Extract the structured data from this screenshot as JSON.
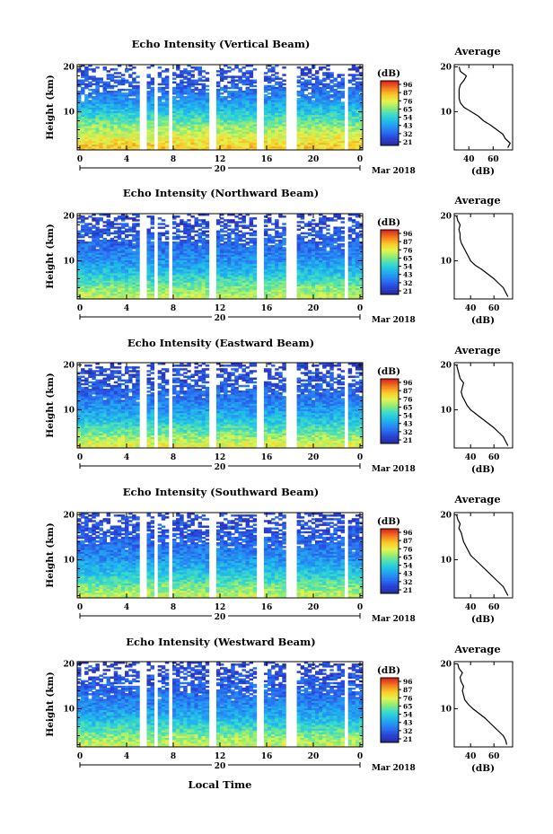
{
  "figure": {
    "xlabel": "Local Time",
    "date_label": "Mar 2018",
    "day_label": "20",
    "colorbar_unit": "(dB)",
    "colorbar_ticks": [
      "96",
      "87",
      "76",
      "65",
      "54",
      "43",
      "32",
      "21"
    ],
    "avg_title": "Average",
    "avg_xlabel": "(dB)"
  },
  "chart_data": [
    {
      "type": "heatmap",
      "title": "Echo Intensity (Vertical Beam)",
      "ylabel": "Height (km)",
      "xlabel": "",
      "x_ticks": [
        "0",
        "4",
        "8",
        "12",
        "16",
        "20",
        "0"
      ],
      "y_ticks": [
        "10",
        "20"
      ],
      "xlim": [
        0,
        24
      ],
      "ylim": [
        1.5,
        20.5
      ],
      "colorbar": {
        "unit": "(dB)",
        "range": [
          21,
          100
        ]
      },
      "data_gaps_hours": [
        [
          5.2,
          5.8
        ],
        [
          6.6,
          6.9
        ],
        [
          7.6,
          8.0
        ],
        [
          11.2,
          11.6
        ],
        [
          15.2,
          15.6
        ],
        [
          17.6,
          18.6
        ],
        [
          22.5,
          22.8
        ]
      ],
      "intensity_by_height": {
        "heights_km": [
          2,
          4,
          6,
          8,
          10,
          12,
          14,
          16,
          18,
          20
        ],
        "dB": [
          82,
          77,
          70,
          62,
          54,
          46,
          40,
          34,
          32,
          30
        ]
      },
      "average_profile": {
        "title": "Average",
        "xlabel": "(dB)",
        "x_ticks": [
          "40",
          "60"
        ],
        "y_ticks": [
          "10",
          "20"
        ],
        "xlim": [
          28,
          76
        ],
        "ylim": [
          1.5,
          20.5
        ],
        "height_km": [
          2,
          3,
          4,
          5,
          6,
          7,
          8,
          9,
          10,
          11,
          12,
          13,
          14,
          15,
          16,
          17,
          18,
          19,
          20
        ],
        "dB": [
          72,
          74,
          70,
          68,
          63,
          58,
          52,
          48,
          42,
          36,
          33,
          32,
          32,
          32,
          33,
          36,
          38,
          33,
          32
        ]
      }
    },
    {
      "type": "heatmap",
      "title": "Echo Intensity (Northward Beam)",
      "ylabel": "Height (km)",
      "xlabel": "",
      "x_ticks": [
        "0",
        "4",
        "8",
        "12",
        "16",
        "20",
        "0"
      ],
      "y_ticks": [
        "10",
        "20"
      ],
      "xlim": [
        0,
        24
      ],
      "ylim": [
        1.5,
        20.5
      ],
      "colorbar": {
        "unit": "(dB)",
        "range": [
          21,
          100
        ]
      },
      "data_gaps_hours": [
        [
          5.2,
          5.8
        ],
        [
          6.6,
          6.9
        ],
        [
          7.6,
          8.0
        ],
        [
          11.2,
          11.6
        ],
        [
          15.2,
          15.6
        ],
        [
          17.6,
          18.6
        ],
        [
          22.5,
          22.8
        ]
      ],
      "intensity_by_height": {
        "heights_km": [
          2,
          4,
          6,
          8,
          10,
          12,
          14,
          16,
          18,
          20
        ],
        "dB": [
          72,
          66,
          58,
          50,
          44,
          40,
          36,
          33,
          31,
          29
        ]
      },
      "average_profile": {
        "title": "Average",
        "xlabel": "(dB)",
        "x_ticks": [
          "40",
          "60"
        ],
        "y_ticks": [
          "10",
          "20"
        ],
        "xlim": [
          26,
          76
        ],
        "ylim": [
          1.5,
          20.5
        ],
        "height_km": [
          2,
          3,
          4,
          5,
          6,
          7,
          8,
          9,
          10,
          11,
          12,
          13,
          14,
          15,
          16,
          17,
          18,
          19,
          20
        ],
        "dB": [
          72,
          70,
          68,
          64,
          60,
          55,
          50,
          44,
          40,
          38,
          36,
          34,
          32,
          31,
          31,
          30,
          31,
          29,
          28
        ]
      }
    },
    {
      "type": "heatmap",
      "title": "Echo Intensity (Eastward Beam)",
      "ylabel": "Height (km)",
      "xlabel": "",
      "x_ticks": [
        "0",
        "4",
        "8",
        "12",
        "16",
        "20",
        "0"
      ],
      "y_ticks": [
        "10",
        "20"
      ],
      "xlim": [
        0,
        24
      ],
      "ylim": [
        1.5,
        20.5
      ],
      "colorbar": {
        "unit": "(dB)",
        "range": [
          21,
          100
        ]
      },
      "data_gaps_hours": [
        [
          5.2,
          5.8
        ],
        [
          6.6,
          6.9
        ],
        [
          7.6,
          8.0
        ],
        [
          11.2,
          11.6
        ],
        [
          15.2,
          15.6
        ],
        [
          17.6,
          18.6
        ],
        [
          22.5,
          22.8
        ]
      ],
      "intensity_by_height": {
        "heights_km": [
          2,
          4,
          6,
          8,
          10,
          12,
          14,
          16,
          18,
          20
        ],
        "dB": [
          76,
          68,
          60,
          52,
          45,
          40,
          36,
          33,
          31,
          29
        ]
      },
      "average_profile": {
        "title": "Average",
        "xlabel": "(dB)",
        "x_ticks": [
          "40",
          "60"
        ],
        "y_ticks": [
          "10",
          "20"
        ],
        "xlim": [
          26,
          76
        ],
        "ylim": [
          1.5,
          20.5
        ],
        "height_km": [
          2,
          3,
          4,
          5,
          6,
          7,
          8,
          9,
          10,
          11,
          12,
          13,
          14,
          15,
          16,
          17,
          18,
          19,
          20
        ],
        "dB": [
          72,
          70,
          68,
          64,
          60,
          55,
          50,
          45,
          40,
          37,
          35,
          33,
          32,
          33,
          34,
          31,
          30,
          29,
          28
        ]
      }
    },
    {
      "type": "heatmap",
      "title": "Echo Intensity (Southward Beam)",
      "ylabel": "Height (km)",
      "xlabel": "",
      "x_ticks": [
        "0",
        "4",
        "8",
        "12",
        "16",
        "20",
        "0"
      ],
      "y_ticks": [
        "10",
        "20"
      ],
      "xlim": [
        0,
        24
      ],
      "ylim": [
        1.5,
        20.5
      ],
      "colorbar": {
        "unit": "(dB)",
        "range": [
          21,
          100
        ]
      },
      "data_gaps_hours": [
        [
          5.2,
          5.8
        ],
        [
          6.6,
          6.9
        ],
        [
          7.6,
          8.0
        ],
        [
          11.2,
          11.6
        ],
        [
          15.2,
          15.6
        ],
        [
          17.6,
          18.6
        ],
        [
          22.5,
          22.8
        ]
      ],
      "intensity_by_height": {
        "heights_km": [
          2,
          4,
          6,
          8,
          10,
          12,
          14,
          16,
          18,
          20
        ],
        "dB": [
          72,
          65,
          57,
          50,
          44,
          40,
          36,
          33,
          31,
          29
        ]
      },
      "average_profile": {
        "title": "Average",
        "xlabel": "(dB)",
        "x_ticks": [
          "40",
          "60"
        ],
        "y_ticks": [
          "10",
          "20"
        ],
        "xlim": [
          26,
          76
        ],
        "ylim": [
          1.5,
          20.5
        ],
        "height_km": [
          2,
          3,
          4,
          5,
          6,
          7,
          8,
          9,
          10,
          11,
          12,
          13,
          14,
          15,
          16,
          17,
          18,
          19,
          20
        ],
        "dB": [
          72,
          70,
          68,
          64,
          60,
          56,
          52,
          48,
          44,
          40,
          38,
          36,
          34,
          33,
          32,
          30,
          31,
          29,
          28
        ]
      }
    },
    {
      "type": "heatmap",
      "title": "Echo Intensity (Westward Beam)",
      "ylabel": "Height (km)",
      "xlabel": "Local Time",
      "x_ticks": [
        "0",
        "4",
        "8",
        "12",
        "16",
        "20",
        "0"
      ],
      "y_ticks": [
        "10",
        "20"
      ],
      "xlim": [
        0,
        24
      ],
      "ylim": [
        1.5,
        20.5
      ],
      "colorbar": {
        "unit": "(dB)",
        "range": [
          21,
          100
        ]
      },
      "data_gaps_hours": [
        [
          5.2,
          5.8
        ],
        [
          6.6,
          6.9
        ],
        [
          7.6,
          8.0
        ],
        [
          11.2,
          11.6
        ],
        [
          15.2,
          15.6
        ],
        [
          17.6,
          18.6
        ],
        [
          22.5,
          22.8
        ]
      ],
      "intensity_by_height": {
        "heights_km": [
          2,
          4,
          6,
          8,
          10,
          12,
          14,
          16,
          18,
          20
        ],
        "dB": [
          73,
          66,
          58,
          50,
          44,
          40,
          36,
          33,
          31,
          29
        ]
      },
      "average_profile": {
        "title": "Average",
        "xlabel": "(dB)",
        "x_ticks": [
          "40",
          "60"
        ],
        "y_ticks": [
          "10",
          "20"
        ],
        "xlim": [
          26,
          76
        ],
        "ylim": [
          1.5,
          20.5
        ],
        "height_km": [
          2,
          3,
          4,
          5,
          6,
          7,
          8,
          9,
          10,
          11,
          12,
          13,
          14,
          15,
          16,
          17,
          18,
          19,
          20
        ],
        "dB": [
          71,
          70,
          68,
          64,
          60,
          56,
          52,
          47,
          42,
          38,
          35,
          34,
          33,
          34,
          32,
          31,
          33,
          30,
          29
        ]
      }
    }
  ]
}
